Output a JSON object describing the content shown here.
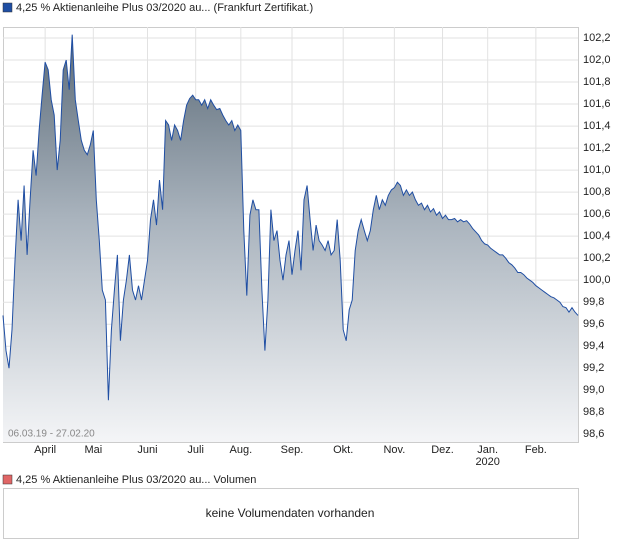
{
  "chart_data": {
    "type": "area",
    "title": "4,25 % Aktienanleihe Plus 03/2020 au... (Frankfurt Zertifikat.)",
    "date_range": "06.03.19 - 27.02.20",
    "color": "#1f4ea3",
    "grid": true,
    "ylim": [
      98.53,
      102.3
    ],
    "yticks": [
      {
        "value": 98.6,
        "label": "98,6"
      },
      {
        "value": 98.8,
        "label": "98,8"
      },
      {
        "value": 99.0,
        "label": "99,0"
      },
      {
        "value": 99.2,
        "label": "99,2"
      },
      {
        "value": 99.4,
        "label": "99,4"
      },
      {
        "value": 99.6,
        "label": "99,6"
      },
      {
        "value": 99.8,
        "label": "99,8"
      },
      {
        "value": 100.0,
        "label": "100,0"
      },
      {
        "value": 100.2,
        "label": "100,2"
      },
      {
        "value": 100.4,
        "label": "100,4"
      },
      {
        "value": 100.6,
        "label": "100,6"
      },
      {
        "value": 100.8,
        "label": "100,8"
      },
      {
        "value": 101.0,
        "label": "101,0"
      },
      {
        "value": 101.2,
        "label": "101,2"
      },
      {
        "value": 101.4,
        "label": "101,4"
      },
      {
        "value": 101.6,
        "label": "101,6"
      },
      {
        "value": 101.8,
        "label": "101,8"
      },
      {
        "value": 102.0,
        "label": "102,0"
      },
      {
        "value": 102.2,
        "label": "102,2"
      }
    ],
    "xticks": [
      {
        "value": 14,
        "label": "April"
      },
      {
        "value": 30,
        "label": "Mai"
      },
      {
        "value": 48,
        "label": "Juni"
      },
      {
        "value": 64,
        "label": "Juli"
      },
      {
        "value": 79,
        "label": "Aug."
      },
      {
        "value": 96,
        "label": "Sep."
      },
      {
        "value": 113,
        "label": "Okt."
      },
      {
        "value": 130,
        "label": "Nov."
      },
      {
        "value": 146,
        "label": "Dez."
      },
      {
        "value": 161,
        "label": "Jan."
      },
      {
        "value": 177,
        "label": "Feb."
      }
    ],
    "year_label": "2020",
    "values": [
      99.68,
      99.36,
      99.2,
      99.55,
      100.18,
      100.73,
      100.36,
      100.86,
      100.23,
      100.73,
      101.18,
      100.95,
      101.36,
      101.68,
      101.98,
      101.91,
      101.64,
      101.5,
      101.0,
      101.27,
      101.91,
      102.0,
      101.73,
      102.23,
      101.64,
      101.45,
      101.27,
      101.18,
      101.14,
      101.23,
      101.36,
      100.73,
      100.36,
      99.91,
      99.82,
      98.91,
      99.55,
      99.91,
      100.23,
      99.45,
      99.82,
      100.0,
      100.23,
      99.91,
      99.82,
      99.95,
      99.82,
      100.0,
      100.18,
      100.55,
      100.73,
      100.5,
      100.91,
      100.64,
      101.45,
      101.41,
      101.27,
      101.41,
      101.36,
      101.27,
      101.45,
      101.59,
      101.65,
      101.68,
      101.64,
      101.64,
      101.59,
      101.64,
      101.56,
      101.64,
      101.59,
      101.55,
      101.56,
      101.5,
      101.45,
      101.41,
      101.45,
      101.36,
      101.41,
      101.36,
      100.45,
      99.86,
      100.59,
      100.73,
      100.64,
      100.64,
      99.91,
      99.36,
      99.82,
      100.64,
      100.36,
      100.45,
      100.18,
      100.0,
      100.23,
      100.36,
      100.05,
      100.27,
      100.45,
      100.09,
      100.73,
      100.86,
      100.55,
      100.27,
      100.5,
      100.36,
      100.32,
      100.27,
      100.36,
      100.23,
      100.27,
      100.55,
      100.18,
      99.55,
      99.45,
      99.73,
      99.82,
      100.27,
      100.45,
      100.55,
      100.45,
      100.36,
      100.45,
      100.64,
      100.77,
      100.64,
      100.73,
      100.68,
      100.77,
      100.82,
      100.84,
      100.89,
      100.86,
      100.77,
      100.82,
      100.77,
      100.8,
      100.73,
      100.68,
      100.7,
      100.64,
      100.68,
      100.62,
      100.65,
      100.59,
      100.62,
      100.56,
      100.59,
      100.55,
      100.55,
      100.56,
      100.53,
      100.55,
      100.53,
      100.54,
      100.51,
      100.47,
      100.44,
      100.41,
      100.36,
      100.33,
      100.32,
      100.29,
      100.27,
      100.25,
      100.23,
      100.23,
      100.2,
      100.16,
      100.14,
      100.11,
      100.07,
      100.07,
      100.05,
      100.02,
      100.0,
      99.98,
      99.95,
      99.93,
      99.91,
      99.89,
      99.87,
      99.85,
      99.84,
      99.82,
      99.8,
      99.76,
      99.75,
      99.71,
      99.75,
      99.71,
      99.68
    ]
  },
  "volume_panel": {
    "title": "4,25 % Aktienanleihe Plus 03/2020 au... Volumen",
    "message": "keine Volumendaten vorhanden"
  }
}
